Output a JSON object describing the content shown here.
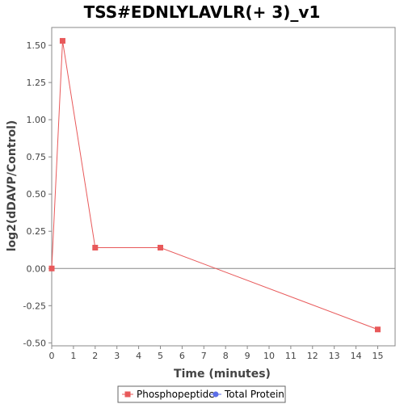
{
  "chart_data": {
    "type": "line",
    "title": "TSS#EDNLYLAVLR(+ 3)_v1",
    "xlabel": "Time (minutes)",
    "ylabel": "log2(dDAVP/Control)",
    "xlim": [
      0,
      15.8
    ],
    "ylim": [
      -0.52,
      1.62
    ],
    "x_ticks": [
      0,
      1,
      2,
      3,
      4,
      5,
      6,
      7,
      8,
      9,
      10,
      11,
      12,
      13,
      14,
      15
    ],
    "y_ticks": [
      -0.5,
      -0.25,
      0.0,
      0.25,
      0.5,
      0.75,
      1.0,
      1.25,
      1.5
    ],
    "y_tick_labels": [
      "-0.50",
      "-0.25",
      "0.00",
      "0.25",
      "0.50",
      "0.75",
      "1.00",
      "1.25",
      "1.50"
    ],
    "zero_line": true,
    "grid": false,
    "legend_position": "bottom",
    "series": [
      {
        "name": "Phosphopeptide",
        "color": "#e8595a",
        "marker": "square",
        "points": [
          {
            "x": 0,
            "y": 0.0
          },
          {
            "x": 0.5,
            "y": 1.53
          },
          {
            "x": 2,
            "y": 0.14
          },
          {
            "x": 5,
            "y": 0.14
          },
          {
            "x": 15,
            "y": -0.41
          }
        ]
      },
      {
        "name": "Total Protein",
        "color": "#5b6ee8",
        "marker": "circle",
        "points": []
      }
    ]
  }
}
